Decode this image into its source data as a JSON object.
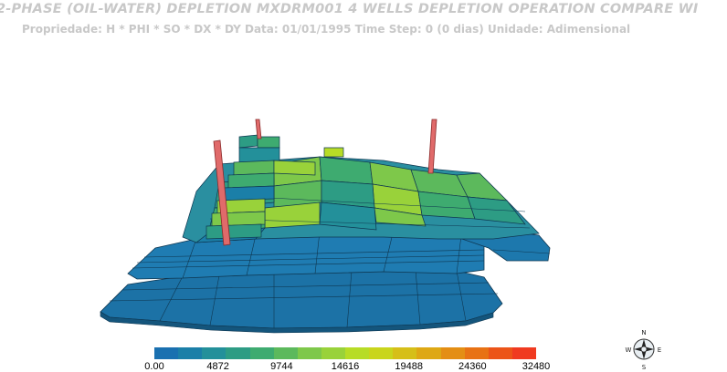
{
  "header": {
    "title": "2-PHASE (OIL-WATER) DEPLETION  MXDRM001  4 WELLS DEPLETION OPERATION  COMPARE WI",
    "subtitle": "Propriedade: H * PHI  * SO  * DX  * DY   Data: 01/01/1995 Time Step: 0 (0 dias) Unidade: Adimensional"
  },
  "legend": {
    "colors": [
      "#1a70b0",
      "#1b7fa8",
      "#23909a",
      "#2d9c84",
      "#3eab70",
      "#5cb95c",
      "#7ec84a",
      "#99d23a",
      "#b7dc26",
      "#c9d51c",
      "#d6bf18",
      "#dea814",
      "#e48e14",
      "#e87214",
      "#ec5418",
      "#f03a20"
    ],
    "labels": [
      "0.00",
      "4872",
      "9744",
      "14616",
      "19488",
      "24360",
      "32480"
    ]
  },
  "compass": {
    "n": "N",
    "s": "S",
    "e": "E",
    "w": "W"
  }
}
